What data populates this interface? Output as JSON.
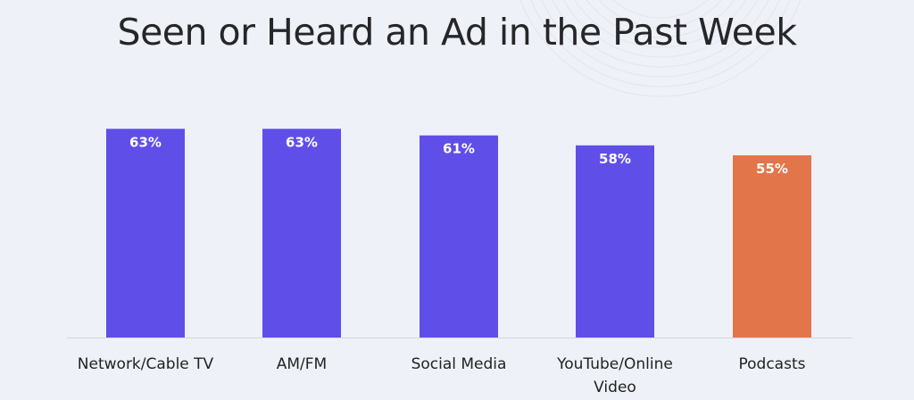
{
  "chart_data": {
    "type": "bar",
    "title": "Seen or Heard an Ad in the Past Week",
    "categories": [
      "Network/Cable TV",
      "AM/FM",
      "Social Media",
      "YouTube/Online Video",
      "Podcasts"
    ],
    "category_lines": [
      [
        "Network/Cable TV"
      ],
      [
        "AM/FM"
      ],
      [
        "Social Media"
      ],
      [
        "YouTube/Online",
        "Video"
      ],
      [
        "Podcasts"
      ]
    ],
    "values": [
      63,
      63,
      61,
      58,
      55
    ],
    "data_labels": [
      "63%",
      "63%",
      "61%",
      "58%",
      "55%"
    ],
    "colors": [
      "#604ee9",
      "#604ee9",
      "#604ee9",
      "#604ee9",
      "#e3754a"
    ],
    "ylim": [
      0,
      63
    ],
    "grid": false,
    "legend": "none",
    "xlabel": "",
    "ylabel": ""
  }
}
